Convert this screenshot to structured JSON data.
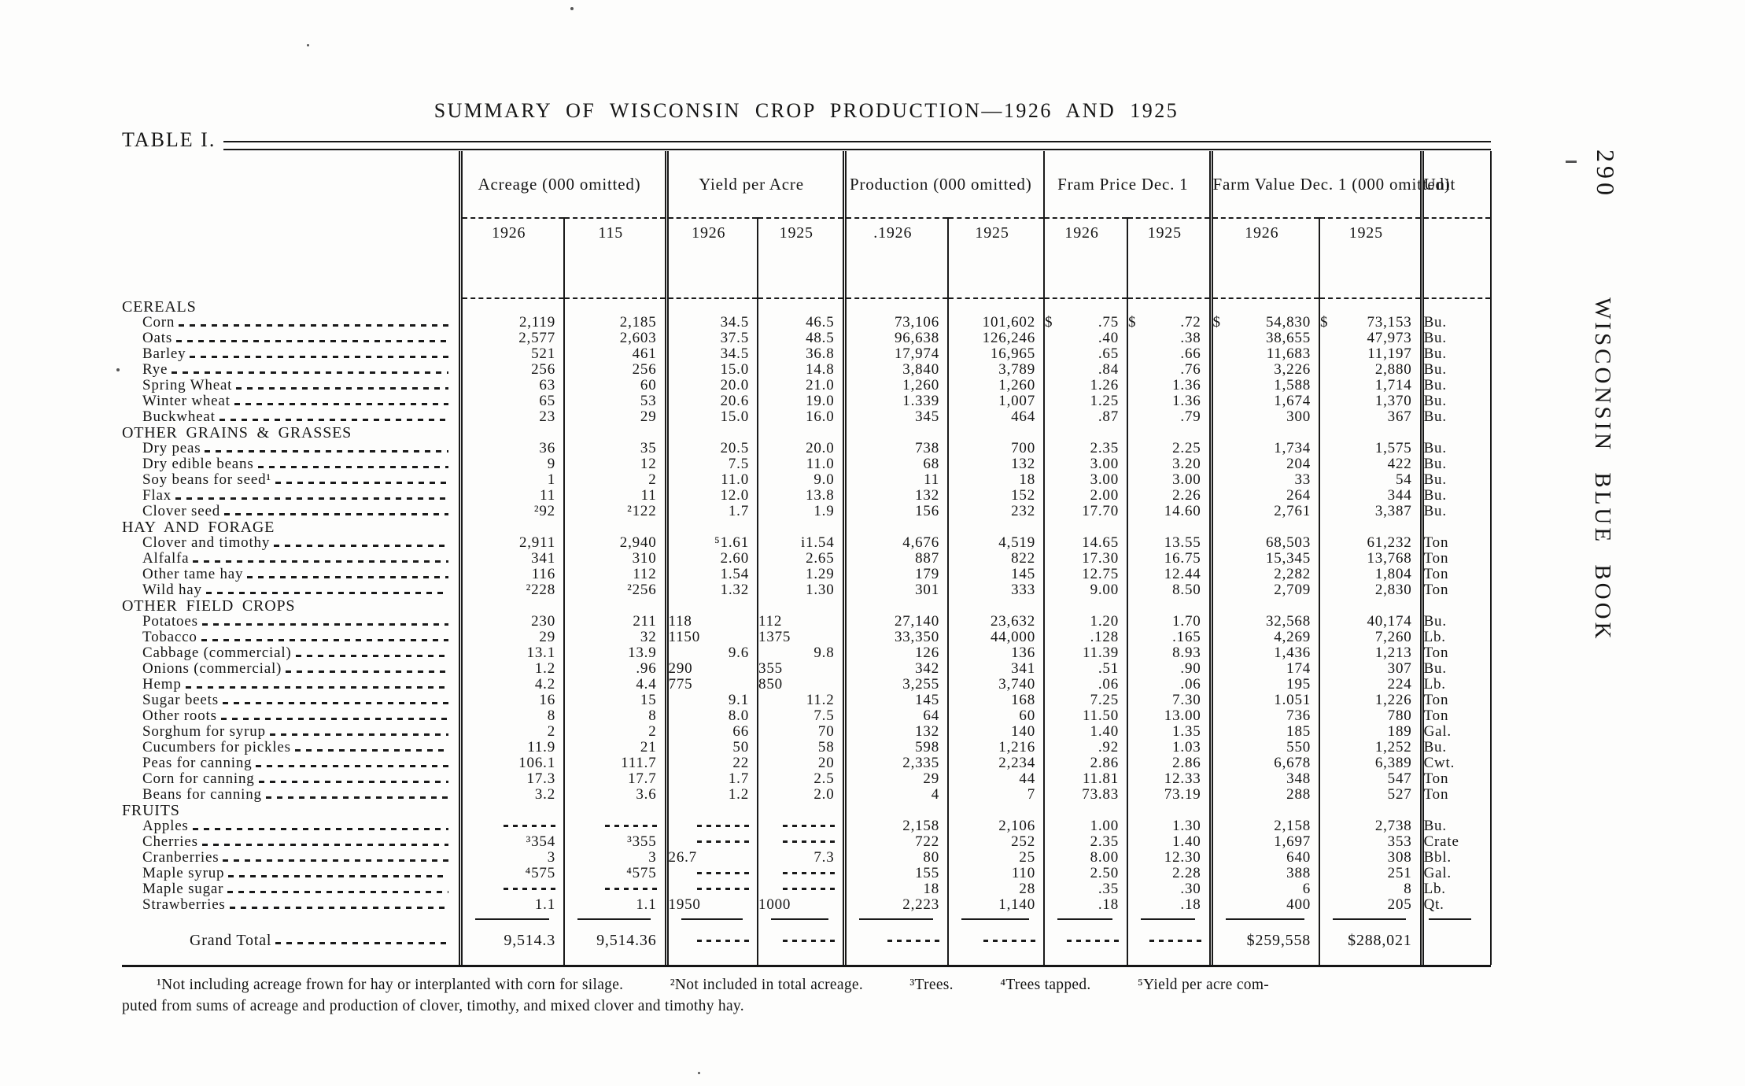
{
  "page": {
    "number": "290",
    "side_title": "WISCONSIN BLUE BOOK"
  },
  "title": "SUMMARY OF WISCONSIN CROP PRODUCTION—1926 AND 1925",
  "table_label": "TABLE I.",
  "header": {
    "col_groups": [
      {
        "label": "Acreage\n(000 omitted)",
        "years": [
          "1926",
          "115"
        ]
      },
      {
        "label": "Yield per Acre",
        "years": [
          "1926",
          "1925"
        ]
      },
      {
        "label": "Production\n(000 omitted)",
        "years": [
          ".1926",
          "1925"
        ]
      },
      {
        "label": "Fram Price\nDec. 1",
        "years": [
          "1926",
          "1925"
        ]
      },
      {
        "label": "Farm Value Dec. 1\n(000 omitted)",
        "years": [
          "1926",
          "1925"
        ]
      }
    ],
    "unit": "Unit"
  },
  "rows": [
    {
      "type": "section",
      "label": "CEREALS"
    },
    {
      "type": "data",
      "label": "Corn",
      "cells": [
        "2,119",
        "2,185",
        "34.5",
        "46.5",
        "73,106",
        "101,602",
        "$|.75",
        "$|.72",
        "$|54,830",
        "$|73,153"
      ],
      "unit": "Bu."
    },
    {
      "type": "data",
      "label": "Oats",
      "cells": [
        "2,577",
        "2,603",
        "37.5",
        "48.5",
        "96,638",
        "126,246",
        ".40",
        ".38",
        "38,655",
        "47,973"
      ],
      "unit": "Bu."
    },
    {
      "type": "data",
      "label": "Barley",
      "cells": [
        "521",
        "461",
        "34.5",
        "36.8",
        "17,974",
        "16,965",
        ".65",
        ".66",
        "11,683",
        "11,197"
      ],
      "unit": "Bu."
    },
    {
      "type": "data",
      "label": "Rye",
      "cells": [
        "256",
        "256",
        "15.0",
        "14.8",
        "3,840",
        "3,789",
        ".84",
        ".76",
        "3,226",
        "2,880"
      ],
      "unit": "Bu."
    },
    {
      "type": "data",
      "label": "Spring Wheat",
      "cells": [
        "63",
        "60",
        "20.0",
        "21.0",
        "1,260",
        "1,260",
        "1.26",
        "1.36",
        "1,588",
        "1,714"
      ],
      "unit": "Bu."
    },
    {
      "type": "data",
      "label": "Winter wheat",
      "cells": [
        "65",
        "53",
        "20.6",
        "19.0",
        "1.339",
        "1,007",
        "1.25",
        "1.36",
        "1,674",
        "1,370"
      ],
      "unit": "Bu."
    },
    {
      "type": "data",
      "label": "Buckwheat",
      "cells": [
        "23",
        "29",
        "15.0",
        "16.0",
        "345",
        "464",
        ".87",
        ".79",
        "300",
        "367"
      ],
      "unit": "Bu."
    },
    {
      "type": "section",
      "label": "OTHER GRAINS & GRASSES"
    },
    {
      "type": "data",
      "label": "Dry peas",
      "cells": [
        "36",
        "35",
        "20.5",
        "20.0",
        "738",
        "700",
        "2.35",
        "2.25",
        "1,734",
        "1,575"
      ],
      "unit": "Bu."
    },
    {
      "type": "data",
      "label": "Dry edible beans",
      "cells": [
        "9",
        "12",
        "7.5",
        "11.0",
        "68",
        "132",
        "3.00",
        "3.20",
        "204",
        "422"
      ],
      "unit": "Bu."
    },
    {
      "type": "data",
      "label": "Soy beans for seed¹",
      "cells": [
        "1",
        "2",
        "11.0",
        "9.0",
        "11",
        "18",
        "3.00",
        "3.00",
        "33",
        "54"
      ],
      "unit": "Bu."
    },
    {
      "type": "data",
      "label": "Flax",
      "cells": [
        "11",
        "11",
        "12.0",
        "13.8",
        "132",
        "152",
        "2.00",
        "2.26",
        "264",
        "344"
      ],
      "unit": "Bu."
    },
    {
      "type": "data",
      "label": "Clover seed",
      "cells": [
        "²92",
        "²122",
        "1.7",
        "1.9",
        "156",
        "232",
        "17.70",
        "14.60",
        "2,761",
        "3,387"
      ],
      "unit": "Bu."
    },
    {
      "type": "section",
      "label": "HAY AND FORAGE"
    },
    {
      "type": "data",
      "label": "Clover and timothy",
      "cells": [
        "2,911",
        "2,940",
        "⁵1.61",
        "i1.54",
        "4,676",
        "4,519",
        "14.65",
        "13.55",
        "68,503",
        "61,232"
      ],
      "unit": "Ton"
    },
    {
      "type": "data",
      "label": "Alfalfa",
      "cells": [
        "341",
        "310",
        "2.60",
        "2.65",
        "887",
        "822",
        "17.30",
        "16.75",
        "15,345",
        "13,768"
      ],
      "unit": "Ton"
    },
    {
      "type": "data",
      "label": "Other tame hay",
      "cells": [
        "116",
        "112",
        "1.54",
        "1.29",
        "179",
        "145",
        "12.75",
        "12.44",
        "2,282",
        "1,804"
      ],
      "unit": "Ton"
    },
    {
      "type": "data",
      "label": "Wild hay",
      "cells": [
        "²228",
        "²256",
        "1.32",
        "1.30",
        "301",
        "333",
        "9.00",
        "8.50",
        "2,709",
        "2,830"
      ],
      "unit": "Ton"
    },
    {
      "type": "section",
      "label": "OTHER FIELD CROPS"
    },
    {
      "type": "data",
      "label": "Potatoes",
      "cells": [
        "230",
        "211",
        "<118",
        "<112",
        "27,140",
        "23,632",
        "1.20",
        "1.70",
        "32,568",
        "40,174"
      ],
      "unit": "Bu."
    },
    {
      "type": "data",
      "label": "Tobacco",
      "cells": [
        "29",
        "32",
        "<1150",
        "<1375",
        "33,350",
        "44,000",
        ".128",
        ".165",
        "4,269",
        "7,260"
      ],
      "unit": "Lb."
    },
    {
      "type": "data",
      "label": "Cabbage (commercial)",
      "cells": [
        "13.1",
        "13.9",
        "9.6",
        "9.8",
        "126",
        "136",
        "11.39",
        "8.93",
        "1,436",
        "1,213"
      ],
      "unit": "Ton"
    },
    {
      "type": "data",
      "label": "Onions (commercial)",
      "cells": [
        "1.2",
        ".96",
        "<290",
        "<355",
        "342",
        "341",
        ".51",
        ".90",
        "174",
        "307"
      ],
      "unit": "Bu."
    },
    {
      "type": "data",
      "label": "Hemp",
      "cells": [
        "4.2",
        "4.4",
        "<775",
        "<850",
        "3,255",
        "3,740",
        ".06",
        ".06",
        "195",
        "224"
      ],
      "unit": "Lb."
    },
    {
      "type": "data",
      "label": "Sugar beets",
      "cells": [
        "16",
        "15",
        "9.1",
        "11.2",
        "145",
        "168",
        "7.25",
        "7.30",
        "1.051",
        "1,226"
      ],
      "unit": "Ton"
    },
    {
      "type": "data",
      "label": "Other roots",
      "cells": [
        "8",
        "8",
        "8.0",
        "7.5",
        "64",
        "60",
        "11.50",
        "13.00",
        "736",
        "780"
      ],
      "unit": "Ton"
    },
    {
      "type": "data",
      "label": "Sorghum for syrup",
      "cells": [
        "2",
        "2",
        "66",
        "70",
        "132",
        "140",
        "1.40",
        "1.35",
        "185",
        "189"
      ],
      "unit": "Gal."
    },
    {
      "type": "data",
      "label": "Cucumbers for pickles",
      "cells": [
        "11.9",
        "21",
        "50",
        "58",
        "598",
        "1,216",
        ".92",
        "1.03",
        "550",
        "1,252"
      ],
      "unit": "Bu."
    },
    {
      "type": "data",
      "label": "Peas for canning",
      "cells": [
        "106.1",
        "111.7",
        "22",
        "20",
        "2,335",
        "2,234",
        "2.86",
        "2.86",
        "6,678",
        "6,389"
      ],
      "unit": "Cwt."
    },
    {
      "type": "data",
      "label": "Corn for canning",
      "cells": [
        "17.3",
        "17.7",
        "1.7",
        "2.5",
        "29",
        "44",
        "11.81",
        "12.33",
        "348",
        "547"
      ],
      "unit": "Ton"
    },
    {
      "type": "data",
      "label": "Beans for canning",
      "cells": [
        "3.2",
        "3.6",
        "1.2",
        "2.0",
        "4",
        "7",
        "73.83",
        "73.19",
        "288",
        "527"
      ],
      "unit": "Ton"
    },
    {
      "type": "section",
      "label": "FRUITS"
    },
    {
      "type": "data",
      "label": "Apples",
      "cells": [
        "~",
        "~",
        "~",
        "~",
        "2,158",
        "2,106",
        "1.00",
        "1.30",
        "2,158",
        "2,738"
      ],
      "unit": "Bu."
    },
    {
      "type": "data",
      "label": "Cherries",
      "cells": [
        "³354",
        "³355",
        "~",
        "~",
        "722",
        "252",
        "2.35",
        "1.40",
        "1,697",
        "353"
      ],
      "unit": "Crate"
    },
    {
      "type": "data",
      "label": "Cranberries",
      "cells": [
        "3",
        "3",
        "<26.7",
        "7.3",
        "80",
        "25",
        "8.00",
        "12.30",
        "640",
        "308"
      ],
      "unit": "Bbl."
    },
    {
      "type": "data",
      "label": "Maple syrup",
      "cells": [
        "⁴575",
        "⁴575",
        "~",
        "~",
        "155",
        "110",
        "2.50",
        "2.28",
        "388",
        "251"
      ],
      "unit": "Gal."
    },
    {
      "type": "data",
      "label": "Maple sugar",
      "cells": [
        "~",
        "~",
        "~",
        "~",
        "18",
        "28",
        ".35",
        ".30",
        "6",
        "8"
      ],
      "unit": "Lb."
    },
    {
      "type": "data",
      "label": "Strawberries",
      "cells": [
        "1.1",
        "1.1",
        "<1950",
        "<1000",
        "2,223",
        "1,140",
        ".18",
        ".18",
        "400",
        "205"
      ],
      "unit": "Qt."
    }
  ],
  "grand_total": {
    "label": "Grand Total",
    "cells": [
      "9,514.3",
      "9,514.36",
      "~",
      "~",
      "~",
      "~",
      "~",
      "~",
      "$259,558",
      "$288,021"
    ],
    "unit": ""
  },
  "footnotes": {
    "line1": "¹Not including acreage frown for hay or interplanted with corn for silage.   ²Not included in total acreage.   ³Trees.   ⁴Trees tapped.   ⁵Yield per acre com-",
    "line2": "puted from sums of acreage and production of clover, timothy, and mixed clover and timothy hay."
  }
}
